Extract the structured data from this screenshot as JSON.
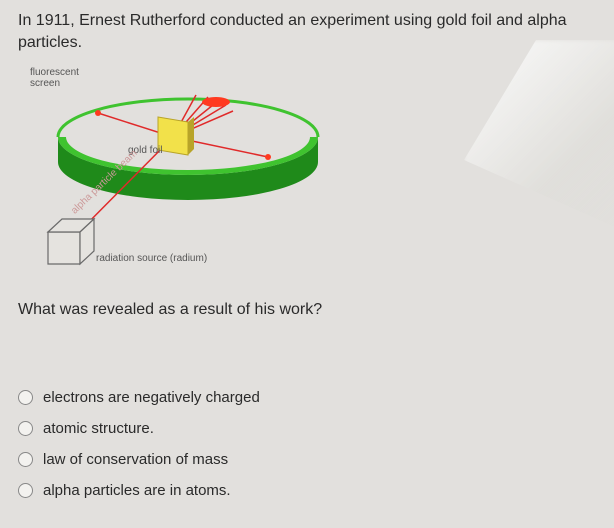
{
  "intro_text": "In 1911, Ernest Rutherford conducted an experiment using gold foil and alpha particles.",
  "diagram": {
    "labels": {
      "fluorescent_screen": "fluorescent\nscreen",
      "gold_foil": "gold foil",
      "alpha_beam": "alpha particle beam",
      "radiation_source": "radiation source (radium)"
    },
    "colors": {
      "ring_top": "#3fc32f",
      "ring_side": "#1f8a1a",
      "foil": "#f2e14a",
      "foil_edge": "#b8a428",
      "beam": "#e02a2a",
      "source_face": "#e5e3df",
      "source_edge": "#6a6a6a",
      "flash": "#ff3a20"
    }
  },
  "question_text": "What was revealed as a result of his work?",
  "options": [
    "electrons are negatively charged",
    "atomic structure.",
    "law of conservation of mass",
    "alpha particles are in atoms."
  ]
}
